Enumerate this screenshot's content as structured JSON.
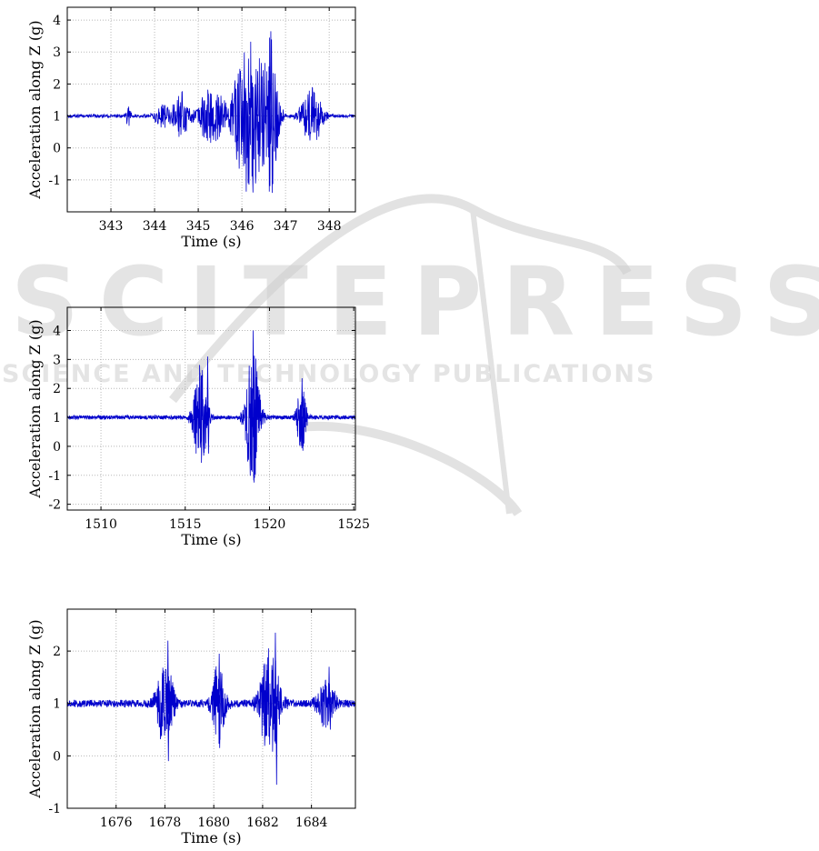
{
  "watermark": {
    "main": "SCITEPRESS",
    "sub": "SCIENCE AND TECHNOLOGY PUBLICATIONS"
  },
  "colors": {
    "series": "#0000cc",
    "grid": "#b8b8b8",
    "axis": "#000000"
  },
  "chart_data": [
    {
      "type": "line",
      "xlabel": "Time (s)",
      "ylabel": "Acceleration along Z (g)",
      "xlim": [
        342.0,
        348.6
      ],
      "ylim": [
        -2.0,
        4.4
      ],
      "xticks": [
        343,
        344,
        345,
        346,
        347,
        348
      ],
      "yticks": [
        -1,
        0,
        1,
        2,
        3,
        4
      ],
      "grid": true,
      "baseline": 1.0,
      "noise": 0.05,
      "n_points": 900,
      "events": [
        {
          "t": 343.4,
          "amp": 0.4,
          "dur": 0.08
        },
        {
          "t": 344.2,
          "amp": 0.4,
          "dur": 0.3
        },
        {
          "t": 344.6,
          "amp": 0.8,
          "dur": 0.25
        },
        {
          "t": 345.3,
          "amp": 0.9,
          "dur": 0.5
        },
        {
          "t": 346.0,
          "amp": 1.8,
          "dur": 0.35
        },
        {
          "t": 346.3,
          "amp": 2.2,
          "dur": 0.3
        },
        {
          "t": 346.65,
          "amp": 2.7,
          "dur": 0.25
        },
        {
          "t": 347.6,
          "amp": 0.9,
          "dur": 0.35
        }
      ],
      "peaks": [
        {
          "x": 346.15,
          "y": -1.15
        },
        {
          "x": 346.65,
          "y": 3.65
        },
        {
          "x": 346.35,
          "y": 2.4
        },
        {
          "x": 347.6,
          "y": 1.9
        },
        {
          "x": 347.75,
          "y": 0.35
        }
      ]
    },
    {
      "type": "line",
      "xlabel": "Time (s)",
      "ylabel": "Acceleration along Z (g)",
      "xlim": [
        1508.0,
        1525.1
      ],
      "ylim": [
        -2.2,
        4.8
      ],
      "xticks": [
        1510,
        1515,
        1520,
        1525
      ],
      "yticks": [
        -2,
        -1,
        0,
        1,
        2,
        3,
        4
      ],
      "grid": true,
      "baseline": 1.0,
      "noise": 0.07,
      "n_points": 1400,
      "events": [
        {
          "t": 1515.9,
          "amp": 1.8,
          "dur": 0.6
        },
        {
          "t": 1519.0,
          "amp": 2.5,
          "dur": 0.6
        },
        {
          "t": 1521.9,
          "amp": 1.2,
          "dur": 0.4
        }
      ],
      "peaks": [
        {
          "x": 1516.3,
          "y": 3.1
        },
        {
          "x": 1516.35,
          "y": -0.25
        },
        {
          "x": 1519.0,
          "y": 4.0
        },
        {
          "x": 1519.05,
          "y": -1.25
        },
        {
          "x": 1521.9,
          "y": 2.35
        },
        {
          "x": 1521.95,
          "y": -0.15
        }
      ]
    },
    {
      "type": "line",
      "xlabel": "Time (s)",
      "ylabel": "Acceleration along Z (g)",
      "xlim": [
        1674.0,
        1685.8
      ],
      "ylim": [
        -1.0,
        2.8
      ],
      "xticks": [
        1676,
        1678,
        1680,
        1682,
        1684
      ],
      "yticks": [
        -1,
        0,
        1,
        2
      ],
      "grid": true,
      "baseline": 1.0,
      "noise": 0.07,
      "n_points": 1200,
      "events": [
        {
          "t": 1678.0,
          "amp": 0.9,
          "dur": 0.5
        },
        {
          "t": 1680.2,
          "amp": 0.8,
          "dur": 0.4
        },
        {
          "t": 1682.3,
          "amp": 1.1,
          "dur": 0.6
        },
        {
          "t": 1684.6,
          "amp": 0.5,
          "dur": 0.5
        }
      ],
      "peaks": [
        {
          "x": 1678.1,
          "y": 2.2
        },
        {
          "x": 1678.12,
          "y": -0.1
        },
        {
          "x": 1680.2,
          "y": 1.95
        },
        {
          "x": 1680.22,
          "y": 0.15
        },
        {
          "x": 1682.5,
          "y": 2.35
        },
        {
          "x": 1682.55,
          "y": -0.55
        },
        {
          "x": 1684.7,
          "y": 1.7
        },
        {
          "x": 1684.75,
          "y": 0.5
        }
      ]
    }
  ]
}
